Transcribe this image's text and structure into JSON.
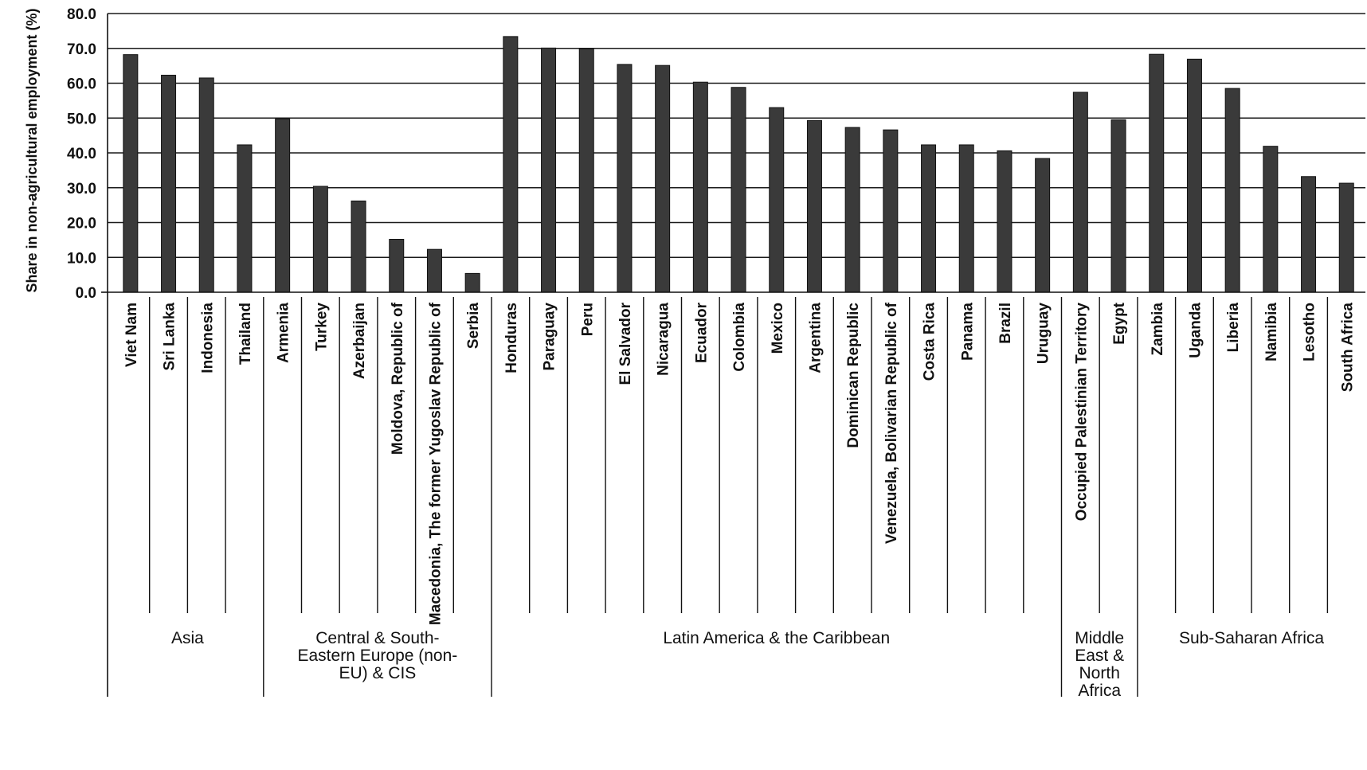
{
  "chart_data": {
    "type": "bar",
    "ylabel": "Share in non-agricultural employment (%)",
    "xlabel": "",
    "ylim": [
      0,
      80
    ],
    "yticks": [
      "0.0",
      "10.0",
      "20.0",
      "30.0",
      "40.0",
      "50.0",
      "60.0",
      "70.0",
      "80.0"
    ],
    "grid": true,
    "bar_color": "#3a3a3a",
    "categories": [
      "Viet Nam",
      "Sri Lanka",
      "Indonesia",
      "Thailand",
      "Armenia",
      "Turkey",
      "Azerbaijan",
      "Moldova, Republic of",
      "Macedonia, The former Yugoslav Republic of",
      "Serbia",
      "Honduras",
      "Paraguay",
      "Peru",
      "El Salvador",
      "Nicaragua",
      "Ecuador",
      "Colombia",
      "Mexico",
      "Argentina",
      "Dominican Republic",
      "Venezuela, Bolivarian Republic of",
      "Costa Rica",
      "Panama",
      "Brazil",
      "Uruguay",
      "Occupied Palestinian Territory",
      "Egypt",
      "Zambia",
      "Uganda",
      "Liberia",
      "Namibia",
      "Lesotho",
      "South Africa"
    ],
    "values": [
      68.2,
      62.3,
      61.5,
      42.3,
      49.7,
      30.4,
      26.2,
      15.2,
      12.3,
      5.4,
      73.4,
      70.1,
      69.9,
      65.4,
      65.1,
      60.3,
      58.8,
      53.0,
      49.3,
      47.3,
      46.6,
      42.3,
      42.3,
      40.6,
      38.4,
      57.4,
      49.5,
      68.3,
      66.9,
      58.5,
      41.9,
      33.2,
      31.3
    ],
    "groups": [
      {
        "label": "Asia",
        "count": 4
      },
      {
        "label": "Central & South-Eastern Europe (non-EU) & CIS",
        "lines": [
          "Central & South-",
          "Eastern Europe (non-",
          "EU) & CIS"
        ],
        "count": 6
      },
      {
        "label": "Latin America & the Caribbean",
        "count": 15
      },
      {
        "label": "Middle East & North Africa",
        "lines": [
          "Middle",
          "East &",
          "North",
          "Africa"
        ],
        "count": 2
      },
      {
        "label": "Sub-Saharan Africa",
        "count": 6
      }
    ]
  }
}
